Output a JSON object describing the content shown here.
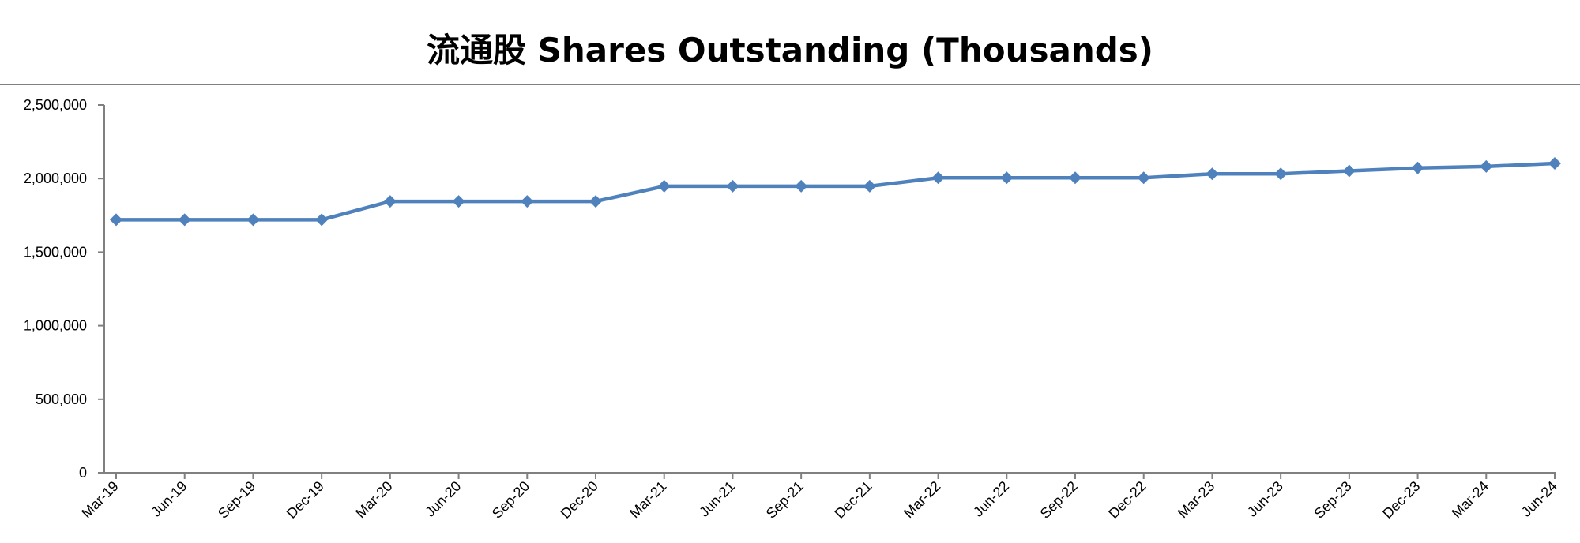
{
  "chart_data": {
    "type": "line",
    "title": "流通股 Shares Outstanding (Thousands)",
    "xlabel": "",
    "ylabel": "",
    "categories": [
      "Mar-19",
      "Jun-19",
      "Sep-19",
      "Dec-19",
      "Mar-20",
      "Jun-20",
      "Sep-20",
      "Dec-20",
      "Mar-21",
      "Jun-21",
      "Sep-21",
      "Dec-21",
      "Mar-22",
      "Jun-22",
      "Sep-22",
      "Dec-22",
      "Mar-23",
      "Jun-23",
      "Sep-23",
      "Dec-23",
      "Mar-24",
      "Jun-24"
    ],
    "series": [
      {
        "values": [
          1720000,
          1720000,
          1720000,
          1720000,
          1845000,
          1845000,
          1845000,
          1845000,
          1948000,
          1948000,
          1948000,
          1948000,
          2005000,
          2005000,
          2005000,
          2005000,
          2032000,
          2032000,
          2052000,
          2072000,
          2082000,
          2103000
        ],
        "color": "#4F81BD",
        "marker": "diamond"
      }
    ],
    "ylim": [
      0,
      2500000
    ],
    "yticks": [
      0,
      500000,
      1000000,
      1500000,
      2000000,
      2500000
    ],
    "ytick_labels": [
      "0",
      "500,000",
      "1,000,000",
      "1,500,000",
      "2,000,000",
      "2,500,000"
    ],
    "grid": false,
    "legend": "none",
    "axis_color": "#808080"
  }
}
